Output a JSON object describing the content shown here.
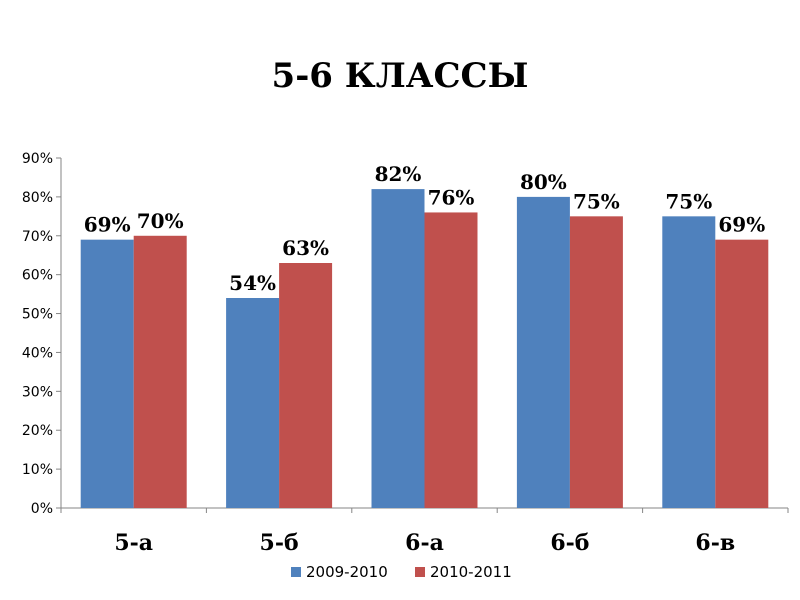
{
  "chart_data": {
    "type": "bar",
    "title": "5-6 КЛАССЫ",
    "xlabel": "",
    "ylabel": "",
    "categories": [
      "5-а",
      "5-б",
      "6-а",
      "6-б",
      "6-в"
    ],
    "series": [
      {
        "name": "2009-2010",
        "color": "#4F81BD",
        "values": [
          69,
          54,
          82,
          80,
          75
        ],
        "labels": [
          "69%",
          "54%",
          "82%",
          "80%",
          "75%"
        ]
      },
      {
        "name": "2010-2011",
        "color": "#C0504D",
        "values": [
          70,
          63,
          76,
          75,
          69
        ],
        "labels": [
          "70%",
          "63%",
          "76%",
          "75%",
          "69%"
        ]
      }
    ],
    "ylim": [
      0,
      90
    ],
    "yticks": [
      {
        "value": 0,
        "label": "0%"
      },
      {
        "value": 10,
        "label": "10%"
      },
      {
        "value": 20,
        "label": "20%"
      },
      {
        "value": 30,
        "label": "30%"
      },
      {
        "value": 40,
        "label": "40%"
      },
      {
        "value": 50,
        "label": "50%"
      },
      {
        "value": 60,
        "label": "60%"
      },
      {
        "value": 70,
        "label": "70%"
      },
      {
        "value": 80,
        "label": "80%"
      },
      {
        "value": 90,
        "label": "90%"
      }
    ],
    "grid": false,
    "legend": "bottom"
  }
}
